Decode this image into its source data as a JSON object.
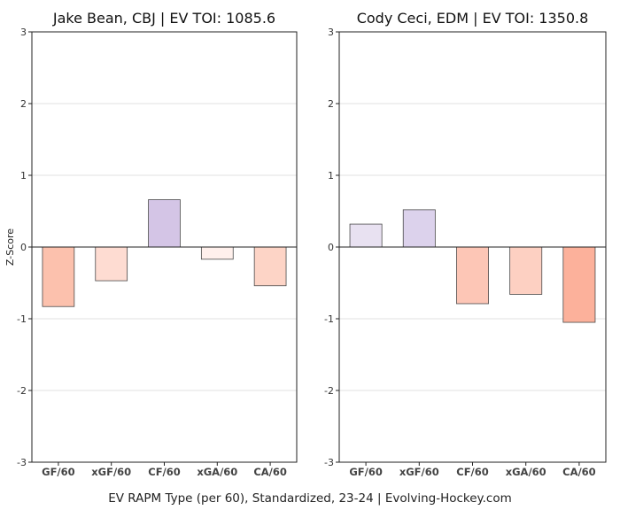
{
  "chart_data": [
    {
      "type": "bar",
      "title": "Jake Bean, CBJ  |  EV TOI: 1085.6",
      "ylabel": "Z-Score",
      "xlabel": "",
      "categories": [
        "GF/60",
        "xGF/60",
        "CF/60",
        "xGA/60",
        "CA/60"
      ],
      "values": [
        -0.83,
        -0.47,
        0.66,
        -0.17,
        -0.54
      ],
      "ylim": [
        -3,
        3
      ],
      "yticks": [
        "-3",
        "-2",
        "-1",
        "0",
        "1",
        "2",
        "3"
      ],
      "grid": true,
      "colors": [
        "#fcc1ad",
        "#fedcd2",
        "#d4c5e6",
        "#fff0ec",
        "#fdd4c6"
      ]
    },
    {
      "type": "bar",
      "title": "Cody Ceci, EDM  |  EV TOI: 1350.8",
      "ylabel": "",
      "xlabel": "",
      "categories": [
        "GF/60",
        "xGF/60",
        "CF/60",
        "xGA/60",
        "CA/60"
      ],
      "values": [
        0.32,
        0.52,
        -0.79,
        -0.66,
        -1.05
      ],
      "ylim": [
        -3,
        3
      ],
      "yticks": [
        "-3",
        "-2",
        "-1",
        "0",
        "1",
        "2",
        "3"
      ],
      "grid": true,
      "colors": [
        "#e8e1f1",
        "#dcd2ec",
        "#fdc6b6",
        "#fdd0c2",
        "#fcb19b"
      ]
    }
  ],
  "footer": {
    "text": "EV RAPM Type (per 60), Standardized, 23-24    |    Evolving-Hockey.com"
  }
}
